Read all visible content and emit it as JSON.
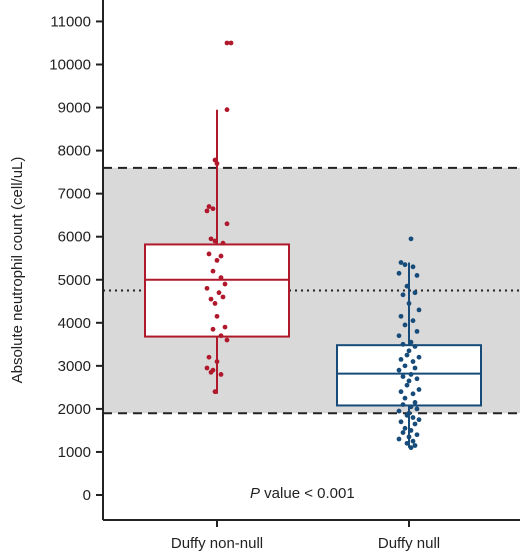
{
  "chart_data": {
    "type": "box",
    "ylabel": "Absolute neutrophil count (cell/uL)",
    "ylim": [
      -500,
      11300
    ],
    "yticks": [
      0,
      1000,
      2000,
      3000,
      4000,
      5000,
      6000,
      7000,
      8000,
      9000,
      10000,
      11000
    ],
    "categories": [
      "Duffy non-null",
      "Duffy null"
    ],
    "reference_band": {
      "low": 1900,
      "high": 7600
    },
    "reference_mean": 4750,
    "annotation": {
      "italic": "P",
      "text": " value < 0.001"
    },
    "colors": {
      "band": "#d9d9d9",
      "axis": "#222222",
      "reference_line": "#222222"
    },
    "series": [
      {
        "category": "Duffy non-null",
        "color": "#b0182c",
        "box": {
          "whisker_low": 2350,
          "q1": 3680,
          "median": 5000,
          "q3": 5820,
          "whisker_high": 8950
        },
        "points": [
          [
            0.1,
            10500
          ],
          [
            0.14,
            10500
          ],
          [
            0.1,
            8950
          ],
          [
            -0.02,
            7780
          ],
          [
            0.0,
            7700
          ],
          [
            -0.08,
            6700
          ],
          [
            -0.04,
            6650
          ],
          [
            -0.1,
            6600
          ],
          [
            0.1,
            6300
          ],
          [
            -0.06,
            5950
          ],
          [
            -0.02,
            5900
          ],
          [
            0.06,
            5850
          ],
          [
            -0.08,
            5600
          ],
          [
            0.04,
            5550
          ],
          [
            0.0,
            5450
          ],
          [
            -0.04,
            5200
          ],
          [
            0.04,
            5050
          ],
          [
            0.08,
            4900
          ],
          [
            -0.1,
            4800
          ],
          [
            0.02,
            4700
          ],
          [
            -0.06,
            4550
          ],
          [
            0.06,
            4600
          ],
          [
            -0.02,
            4450
          ],
          [
            0.0,
            4150
          ],
          [
            0.08,
            3900
          ],
          [
            -0.04,
            3850
          ],
          [
            0.04,
            3700
          ],
          [
            0.1,
            3600
          ],
          [
            -0.08,
            3200
          ],
          [
            0.0,
            3100
          ],
          [
            -0.1,
            2950
          ],
          [
            -0.04,
            2900
          ],
          [
            0.04,
            2800
          ],
          [
            -0.06,
            2850
          ],
          [
            -0.02,
            2400
          ]
        ]
      },
      {
        "category": "Duffy null",
        "color": "#174c7a",
        "box": {
          "whisker_low": 1100,
          "q1": 2080,
          "median": 2820,
          "q3": 3480,
          "whisker_high": 5400
        },
        "points": [
          [
            0.02,
            5950
          ],
          [
            -0.08,
            5400
          ],
          [
            -0.04,
            5350
          ],
          [
            0.04,
            5300
          ],
          [
            -0.1,
            5150
          ],
          [
            0.08,
            5100
          ],
          [
            -0.02,
            4850
          ],
          [
            0.06,
            4700
          ],
          [
            -0.06,
            4650
          ],
          [
            0.0,
            4450
          ],
          [
            0.1,
            4300
          ],
          [
            -0.08,
            4150
          ],
          [
            0.04,
            4050
          ],
          [
            -0.04,
            3950
          ],
          [
            0.08,
            3800
          ],
          [
            -0.1,
            3700
          ],
          [
            0.02,
            3550
          ],
          [
            -0.06,
            3500
          ],
          [
            0.06,
            3450
          ],
          [
            0.0,
            3350
          ],
          [
            -0.02,
            3250
          ],
          [
            0.1,
            3200
          ],
          [
            -0.08,
            3150
          ],
          [
            0.04,
            3100
          ],
          [
            -0.04,
            3000
          ],
          [
            0.06,
            2950
          ],
          [
            -0.1,
            2900
          ],
          [
            0.02,
            2800
          ],
          [
            -0.06,
            2750
          ],
          [
            0.08,
            2700
          ],
          [
            0.0,
            2650
          ],
          [
            -0.02,
            2550
          ],
          [
            0.1,
            2450
          ],
          [
            -0.08,
            2400
          ],
          [
            0.04,
            2350
          ],
          [
            -0.04,
            2250
          ],
          [
            0.06,
            2150
          ],
          [
            -0.06,
            2100
          ],
          [
            0.02,
            2050
          ],
          [
            0.08,
            2000
          ],
          [
            -0.1,
            1950
          ],
          [
            0.0,
            1900
          ],
          [
            -0.02,
            1850
          ],
          [
            0.04,
            1800
          ],
          [
            0.1,
            1750
          ],
          [
            -0.08,
            1700
          ],
          [
            0.06,
            1650
          ],
          [
            -0.04,
            1550
          ],
          [
            0.02,
            1500
          ],
          [
            -0.06,
            1450
          ],
          [
            0.08,
            1400
          ],
          [
            0.0,
            1350
          ],
          [
            -0.1,
            1300
          ],
          [
            0.04,
            1250
          ],
          [
            -0.02,
            1200
          ],
          [
            0.06,
            1150
          ],
          [
            0.02,
            1100
          ]
        ]
      }
    ]
  }
}
